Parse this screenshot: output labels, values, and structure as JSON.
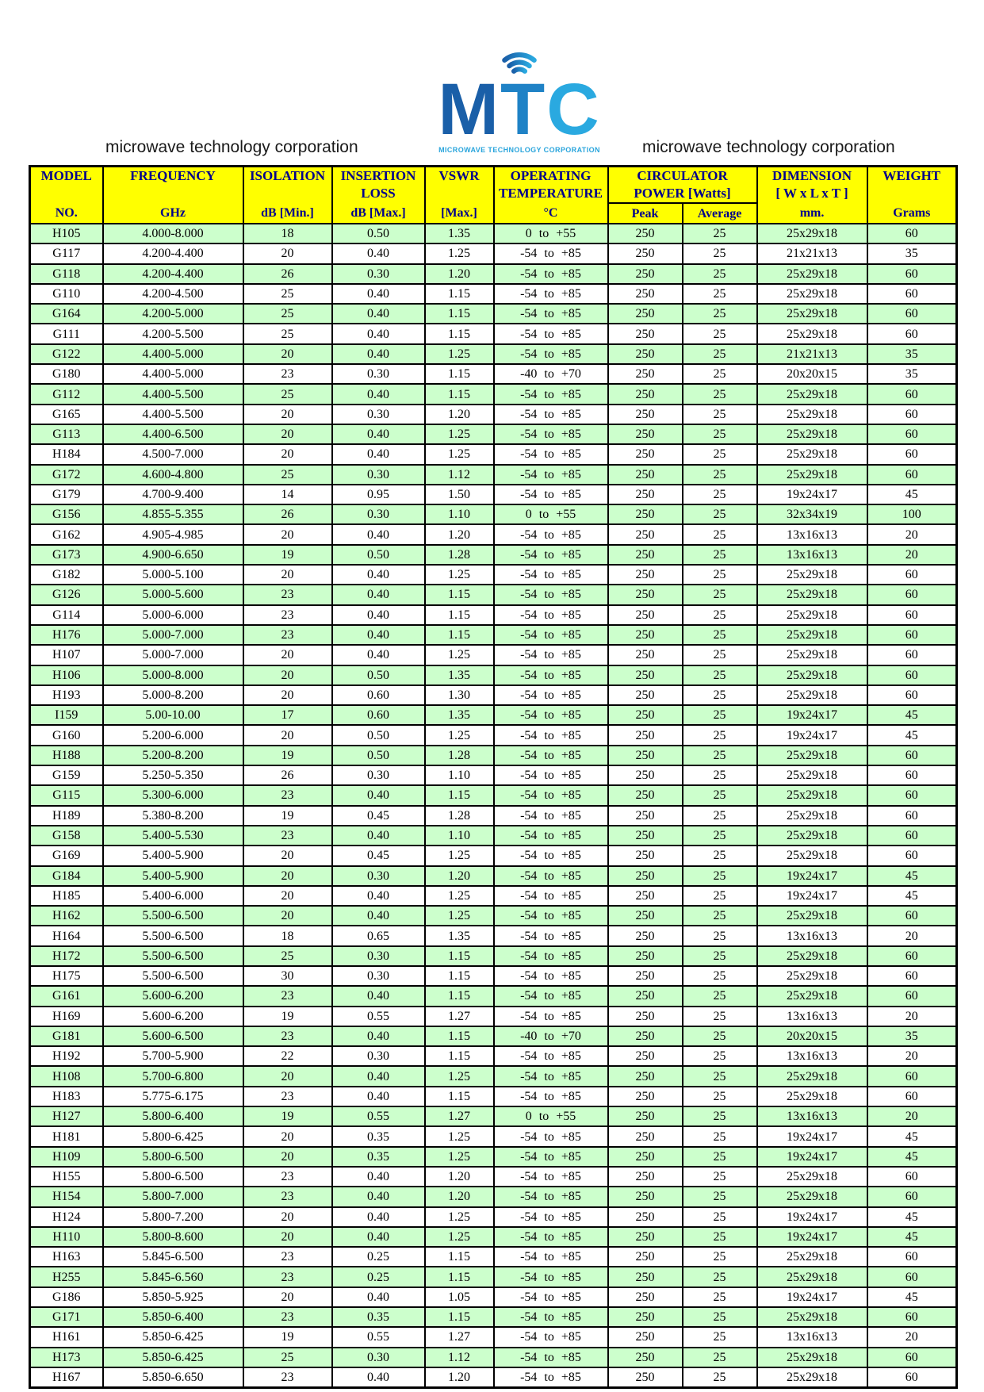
{
  "page": {
    "company_text_left": "microwave technology corporation",
    "company_text_right": "microwave technology corporation",
    "logo": {
      "letters": [
        "M",
        "T",
        "C"
      ],
      "subtitle": "MICROWAVE TECHNOLOGY CORPORATION",
      "icon": "wifi-signal-icon",
      "colors": {
        "dark_blue": "#1a5fa8",
        "mid_blue": "#1f82c6",
        "light_blue": "#2aa9e0"
      }
    }
  },
  "table": {
    "colors": {
      "header_bg": "#ffff00",
      "header_text": "#00008b",
      "row_alt_bg": "#ccffcc",
      "row_bg": "#ffffff",
      "border": "#000000"
    },
    "columns": [
      {
        "line1": "MODEL",
        "line2": "",
        "line3": "NO."
      },
      {
        "line1": "FREQUENCY",
        "line2": "",
        "line3": "GHz"
      },
      {
        "line1": "ISOLATION",
        "line2": "",
        "line3": "dB [Min.]"
      },
      {
        "line1": "INSERTION",
        "line2": "LOSS",
        "line3": "dB [Max.]"
      },
      {
        "line1": "VSWR",
        "line2": "",
        "line3": "[Max.]"
      },
      {
        "line1": "OPERATING",
        "line2": "TEMPERATURE",
        "line3": "°C"
      },
      {
        "line1": "CIRCULATOR",
        "line2": "POWER [Watts]",
        "sub1": "Peak",
        "sub2": "Average"
      },
      {
        "line1": "DIMENSION",
        "line2": "[ W x L x T ]",
        "line3": "mm."
      },
      {
        "line1": "WEIGHT",
        "line2": "",
        "line3": "Grams"
      }
    ],
    "rows": [
      [
        "H105",
        "4.000-8.000",
        "18",
        "0.50",
        "1.35",
        "0 to +55",
        "250",
        "25",
        "25x29x18",
        "60"
      ],
      [
        "G117",
        "4.200-4.400",
        "20",
        "0.40",
        "1.25",
        "-54 to +85",
        "250",
        "25",
        "21x21x13",
        "35"
      ],
      [
        "G118",
        "4.200-4.400",
        "26",
        "0.30",
        "1.20",
        "-54 to +85",
        "250",
        "25",
        "25x29x18",
        "60"
      ],
      [
        "G110",
        "4.200-4.500",
        "25",
        "0.40",
        "1.15",
        "-54 to +85",
        "250",
        "25",
        "25x29x18",
        "60"
      ],
      [
        "G164",
        "4.200-5.000",
        "25",
        "0.40",
        "1.15",
        "-54 to +85",
        "250",
        "25",
        "25x29x18",
        "60"
      ],
      [
        "G111",
        "4.200-5.500",
        "25",
        "0.40",
        "1.15",
        "-54 to +85",
        "250",
        "25",
        "25x29x18",
        "60"
      ],
      [
        "G122",
        "4.400-5.000",
        "20",
        "0.40",
        "1.25",
        "-54 to +85",
        "250",
        "25",
        "21x21x13",
        "35"
      ],
      [
        "G180",
        "4.400-5.000",
        "23",
        "0.30",
        "1.15",
        "-40 to +70",
        "250",
        "25",
        "20x20x15",
        "35"
      ],
      [
        "G112",
        "4.400-5.500",
        "25",
        "0.40",
        "1.15",
        "-54 to +85",
        "250",
        "25",
        "25x29x18",
        "60"
      ],
      [
        "G165",
        "4.400-5.500",
        "20",
        "0.30",
        "1.20",
        "-54 to +85",
        "250",
        "25",
        "25x29x18",
        "60"
      ],
      [
        "G113",
        "4.400-6.500",
        "20",
        "0.40",
        "1.25",
        "-54 to +85",
        "250",
        "25",
        "25x29x18",
        "60"
      ],
      [
        "H184",
        "4.500-7.000",
        "20",
        "0.40",
        "1.25",
        "-54 to +85",
        "250",
        "25",
        "25x29x18",
        "60"
      ],
      [
        "G172",
        "4.600-4.800",
        "25",
        "0.30",
        "1.12",
        "-54 to +85",
        "250",
        "25",
        "25x29x18",
        "60"
      ],
      [
        "G179",
        "4.700-9.400",
        "14",
        "0.95",
        "1.50",
        "-54 to +85",
        "250",
        "25",
        "19x24x17",
        "45"
      ],
      [
        "G156",
        "4.855-5.355",
        "26",
        "0.30",
        "1.10",
        "0 to +55",
        "250",
        "25",
        "32x34x19",
        "100"
      ],
      [
        "G162",
        "4.905-4.985",
        "20",
        "0.40",
        "1.20",
        "-54 to +85",
        "250",
        "25",
        "13x16x13",
        "20"
      ],
      [
        "G173",
        "4.900-6.650",
        "19",
        "0.50",
        "1.28",
        "-54 to +85",
        "250",
        "25",
        "13x16x13",
        "20"
      ],
      [
        "G182",
        "5.000-5.100",
        "20",
        "0.40",
        "1.25",
        "-54 to +85",
        "250",
        "25",
        "25x29x18",
        "60"
      ],
      [
        "G126",
        "5.000-5.600",
        "23",
        "0.40",
        "1.15",
        "-54 to +85",
        "250",
        "25",
        "25x29x18",
        "60"
      ],
      [
        "G114",
        "5.000-6.000",
        "23",
        "0.40",
        "1.15",
        "-54 to +85",
        "250",
        "25",
        "25x29x18",
        "60"
      ],
      [
        "H176",
        "5.000-7.000",
        "23",
        "0.40",
        "1.15",
        "-54 to +85",
        "250",
        "25",
        "25x29x18",
        "60"
      ],
      [
        "H107",
        "5.000-7.000",
        "20",
        "0.40",
        "1.25",
        "-54 to +85",
        "250",
        "25",
        "25x29x18",
        "60"
      ],
      [
        "H106",
        "5.000-8.000",
        "20",
        "0.50",
        "1.35",
        "-54 to +85",
        "250",
        "25",
        "25x29x18",
        "60"
      ],
      [
        "H193",
        "5.000-8.200",
        "20",
        "0.60",
        "1.30",
        "-54 to +85",
        "250",
        "25",
        "25x29x18",
        "60"
      ],
      [
        "I159",
        "5.00-10.00",
        "17",
        "0.60",
        "1.35",
        "-54 to +85",
        "250",
        "25",
        "19x24x17",
        "45"
      ],
      [
        "G160",
        "5.200-6.000",
        "20",
        "0.50",
        "1.25",
        "-54 to +85",
        "250",
        "25",
        "19x24x17",
        "45"
      ],
      [
        "H188",
        "5.200-8.200",
        "19",
        "0.50",
        "1.28",
        "-54 to +85",
        "250",
        "25",
        "25x29x18",
        "60"
      ],
      [
        "G159",
        "5.250-5.350",
        "26",
        "0.30",
        "1.10",
        "-54 to +85",
        "250",
        "25",
        "25x29x18",
        "60"
      ],
      [
        "G115",
        "5.300-6.000",
        "23",
        "0.40",
        "1.15",
        "-54 to +85",
        "250",
        "25",
        "25x29x18",
        "60"
      ],
      [
        "H189",
        "5.380-8.200",
        "19",
        "0.45",
        "1.28",
        "-54 to +85",
        "250",
        "25",
        "25x29x18",
        "60"
      ],
      [
        "G158",
        "5.400-5.530",
        "23",
        "0.40",
        "1.10",
        "-54 to +85",
        "250",
        "25",
        "25x29x18",
        "60"
      ],
      [
        "G169",
        "5.400-5.900",
        "20",
        "0.45",
        "1.25",
        "-54 to +85",
        "250",
        "25",
        "25x29x18",
        "60"
      ],
      [
        "G184",
        "5.400-5.900",
        "20",
        "0.30",
        "1.20",
        "-54 to +85",
        "250",
        "25",
        "19x24x17",
        "45"
      ],
      [
        "H185",
        "5.400-6.000",
        "20",
        "0.40",
        "1.25",
        "-54 to +85",
        "250",
        "25",
        "19x24x17",
        "45"
      ],
      [
        "H162",
        "5.500-6.500",
        "20",
        "0.40",
        "1.25",
        "-54 to +85",
        "250",
        "25",
        "25x29x18",
        "60"
      ],
      [
        "H164",
        "5.500-6.500",
        "18",
        "0.65",
        "1.35",
        "-54 to +85",
        "250",
        "25",
        "13x16x13",
        "20"
      ],
      [
        "H172",
        "5.500-6.500",
        "25",
        "0.30",
        "1.15",
        "-54 to +85",
        "250",
        "25",
        "25x29x18",
        "60"
      ],
      [
        "H175",
        "5.500-6.500",
        "30",
        "0.30",
        "1.15",
        "-54 to +85",
        "250",
        "25",
        "25x29x18",
        "60"
      ],
      [
        "G161",
        "5.600-6.200",
        "23",
        "0.40",
        "1.15",
        "-54 to +85",
        "250",
        "25",
        "25x29x18",
        "60"
      ],
      [
        "H169",
        "5.600-6.200",
        "19",
        "0.55",
        "1.27",
        "-54 to +85",
        "250",
        "25",
        "13x16x13",
        "20"
      ],
      [
        "G181",
        "5.600-6.500",
        "23",
        "0.40",
        "1.15",
        "-40 to +70",
        "250",
        "25",
        "20x20x15",
        "35"
      ],
      [
        "H192",
        "5.700-5.900",
        "22",
        "0.30",
        "1.15",
        "-54 to +85",
        "250",
        "25",
        "13x16x13",
        "20"
      ],
      [
        "H108",
        "5.700-6.800",
        "20",
        "0.40",
        "1.25",
        "-54 to +85",
        "250",
        "25",
        "25x29x18",
        "60"
      ],
      [
        "H183",
        "5.775-6.175",
        "23",
        "0.40",
        "1.15",
        "-54 to +85",
        "250",
        "25",
        "25x29x18",
        "60"
      ],
      [
        "H127",
        "5.800-6.400",
        "19",
        "0.55",
        "1.27",
        "0 to +55",
        "250",
        "25",
        "13x16x13",
        "20"
      ],
      [
        "H181",
        "5.800-6.425",
        "20",
        "0.35",
        "1.25",
        "-54 to +85",
        "250",
        "25",
        "19x24x17",
        "45"
      ],
      [
        "H109",
        "5.800-6.500",
        "20",
        "0.35",
        "1.25",
        "-54 to +85",
        "250",
        "25",
        "19x24x17",
        "45"
      ],
      [
        "H155",
        "5.800-6.500",
        "23",
        "0.40",
        "1.20",
        "-54 to +85",
        "250",
        "25",
        "25x29x18",
        "60"
      ],
      [
        "H154",
        "5.800-7.000",
        "23",
        "0.40",
        "1.20",
        "-54 to +85",
        "250",
        "25",
        "25x29x18",
        "60"
      ],
      [
        "H124",
        "5.800-7.200",
        "20",
        "0.40",
        "1.25",
        "-54 to +85",
        "250",
        "25",
        "19x24x17",
        "45"
      ],
      [
        "H110",
        "5.800-8.600",
        "20",
        "0.40",
        "1.25",
        "-54 to +85",
        "250",
        "25",
        "19x24x17",
        "45"
      ],
      [
        "H163",
        "5.845-6.500",
        "23",
        "0.25",
        "1.15",
        "-54 to +85",
        "250",
        "25",
        "25x29x18",
        "60"
      ],
      [
        "H255",
        "5.845-6.560",
        "23",
        "0.25",
        "1.15",
        "-54 to +85",
        "250",
        "25",
        "25x29x18",
        "60"
      ],
      [
        "G186",
        "5.850-5.925",
        "20",
        "0.40",
        "1.05",
        "-54 to +85",
        "250",
        "25",
        "19x24x17",
        "45"
      ],
      [
        "G171",
        "5.850-6.400",
        "23",
        "0.35",
        "1.15",
        "-54 to +85",
        "250",
        "25",
        "25x29x18",
        "60"
      ],
      [
        "H161",
        "5.850-6.425",
        "19",
        "0.55",
        "1.27",
        "-54 to +85",
        "250",
        "25",
        "13x16x13",
        "20"
      ],
      [
        "H173",
        "5.850-6.425",
        "25",
        "0.30",
        "1.12",
        "-54 to +85",
        "250",
        "25",
        "25x29x18",
        "60"
      ],
      [
        "H167",
        "5.850-6.650",
        "23",
        "0.40",
        "1.20",
        "-54 to +85",
        "250",
        "25",
        "25x29x18",
        "60"
      ]
    ]
  }
}
